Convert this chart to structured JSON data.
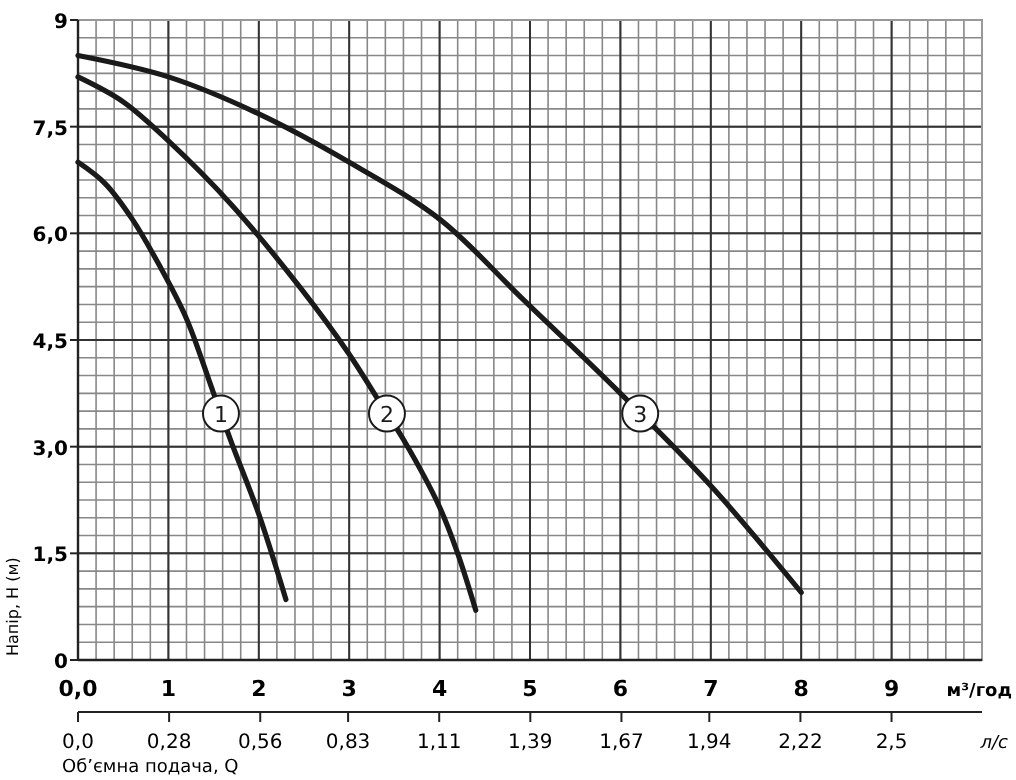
{
  "chart_data": {
    "type": "line",
    "xlabel": "м³/год",
    "x2label": "л/с",
    "ylabel": "Напір, H (м)",
    "annotations": [
      "Об’ємна подача, Q"
    ],
    "xlim": [
      0,
      10
    ],
    "xticks": [
      {
        "value": 0,
        "label": "0,0"
      },
      1,
      2,
      3,
      4,
      5,
      6,
      7,
      8,
      9
    ],
    "x2lim": [
      0,
      2.778
    ],
    "x2ticks": [
      {
        "value": 0,
        "label": "0,0"
      },
      {
        "value": 0.28,
        "label": "0,28"
      },
      {
        "value": 0.56,
        "label": "0,56"
      },
      {
        "value": 0.83,
        "label": "0,83"
      },
      {
        "value": 1.11,
        "label": "1,11"
      },
      {
        "value": 1.39,
        "label": "1,39"
      },
      {
        "value": 1.67,
        "label": "1,67"
      },
      {
        "value": 1.94,
        "label": "1,94"
      },
      {
        "value": 2.22,
        "label": "2,22"
      },
      {
        "value": 2.5,
        "label": "2,5"
      }
    ],
    "ylim": [
      0,
      9
    ],
    "yticks": [
      0,
      {
        "value": 1.5,
        "label": "1,5"
      },
      {
        "value": 3,
        "label": "3,0"
      },
      {
        "value": 4.5,
        "label": "4,5"
      },
      {
        "value": 6,
        "label": "6,0"
      },
      {
        "value": 7.5,
        "label": "7,5"
      },
      9
    ],
    "grid": true,
    "marker": "none",
    "line_style": "solid",
    "series": [
      {
        "name": "1",
        "color": "#1a1a1a",
        "x": [
          0,
          0.3,
          0.6,
          0.9,
          1.2,
          1.5,
          1.7,
          2.0,
          2.3
        ],
        "values": [
          7.0,
          6.7,
          6.2,
          5.55,
          4.8,
          3.75,
          3.05,
          2.05,
          0.85
        ]
      },
      {
        "name": "2",
        "color": "#1a1a1a",
        "x": [
          0,
          0.5,
          1,
          1.7,
          2.45,
          3.0,
          3.3,
          3.6,
          4.0,
          4.2,
          4.4
        ],
        "values": [
          8.2,
          7.85,
          7.3,
          6.4,
          5.25,
          4.3,
          3.7,
          3.1,
          2.15,
          1.5,
          0.7
        ]
      },
      {
        "name": "3",
        "color": "#1a1a1a",
        "x": [
          0,
          1,
          2,
          3,
          4,
          4.9,
          6,
          7,
          8
        ],
        "values": [
          8.5,
          8.2,
          7.68,
          7.0,
          6.2,
          5.1,
          3.75,
          2.45,
          0.95
        ]
      }
    ]
  }
}
